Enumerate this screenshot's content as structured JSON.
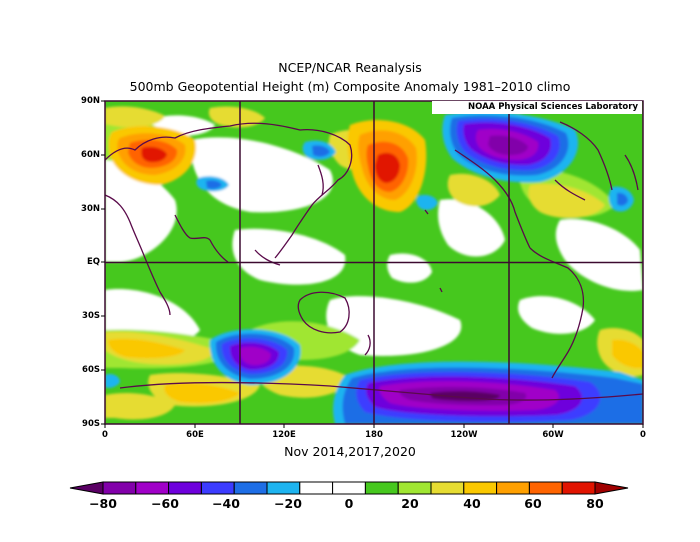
{
  "title": {
    "line1": "NCEP/NCAR Reanalysis",
    "line2": "500mb Geopotential Height (m) Composite Anomaly 1981–2010 climo"
  },
  "credit": "NOAA Physical Sciences Laboratory",
  "period": "Nov 2014,2017,2020",
  "lat_labels": [
    "90N",
    "60N",
    "30N",
    "EQ",
    "30S",
    "60S",
    "90S"
  ],
  "lon_labels": [
    "0",
    "60E",
    "120E",
    "180",
    "120W",
    "60W",
    "0"
  ],
  "colorbar": {
    "tick_labels": [
      "−80",
      "−60",
      "−40",
      "−20",
      "0",
      "20",
      "40",
      "60",
      "80"
    ],
    "colors": [
      "#5a0064",
      "#8200aa",
      "#a000c8",
      "#6e00dc",
      "#3c3cff",
      "#1e6ee6",
      "#1eb4f0",
      "#ffffff",
      "#ffffff",
      "#46c81e",
      "#a0e632",
      "#e6dc32",
      "#fac800",
      "#ffa000",
      "#ff6400",
      "#e11400",
      "#a00000"
    ]
  },
  "colors": {
    "coast": "#5a0a4a",
    "grid": "#3c0a30",
    "frame": "#3c0a30"
  }
}
